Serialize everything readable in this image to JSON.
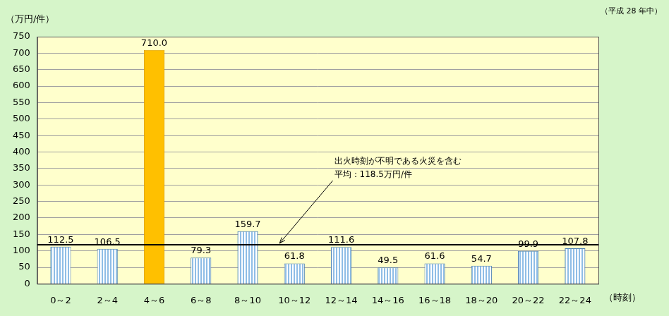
{
  "chart_data": {
    "type": "bar",
    "subtitle": "（平成 28 年中）",
    "ylabel": "（万円/件）",
    "xlabel": "（時刻）",
    "categories": [
      "0～2",
      "2～4",
      "4～6",
      "6～8",
      "8～10",
      "10～12",
      "12～14",
      "14～16",
      "16～18",
      "18～20",
      "20～22",
      "22～24"
    ],
    "values": [
      112.5,
      106.5,
      710.0,
      79.3,
      159.7,
      61.8,
      111.6,
      49.5,
      61.6,
      54.7,
      99.9,
      107.8
    ],
    "value_labels": [
      "112.5",
      "106.5",
      "710.0",
      "79.3",
      "159.7",
      "61.8",
      "111.6",
      "49.5",
      "61.6",
      "54.7",
      "99.9",
      "107.8"
    ],
    "colors": [
      "#8fbde6",
      "#8fbde6",
      "#ffc000",
      "#8fbde6",
      "#8fbde6",
      "#8fbde6",
      "#8fbde6",
      "#8fbde6",
      "#8fbde6",
      "#8fbde6",
      "#8fbde6",
      "#8fbde6"
    ],
    "ylim": [
      0,
      750
    ],
    "yticks": [
      0,
      50,
      100,
      150,
      200,
      250,
      300,
      350,
      400,
      450,
      500,
      550,
      600,
      650,
      700,
      750
    ],
    "grid": true,
    "data_labels": true,
    "annotations": [
      {
        "type": "hline",
        "value": 118.5,
        "text": [
          "出火時刻が不明である火災を含む",
          "平均：118.5万円/件"
        ]
      }
    ]
  }
}
